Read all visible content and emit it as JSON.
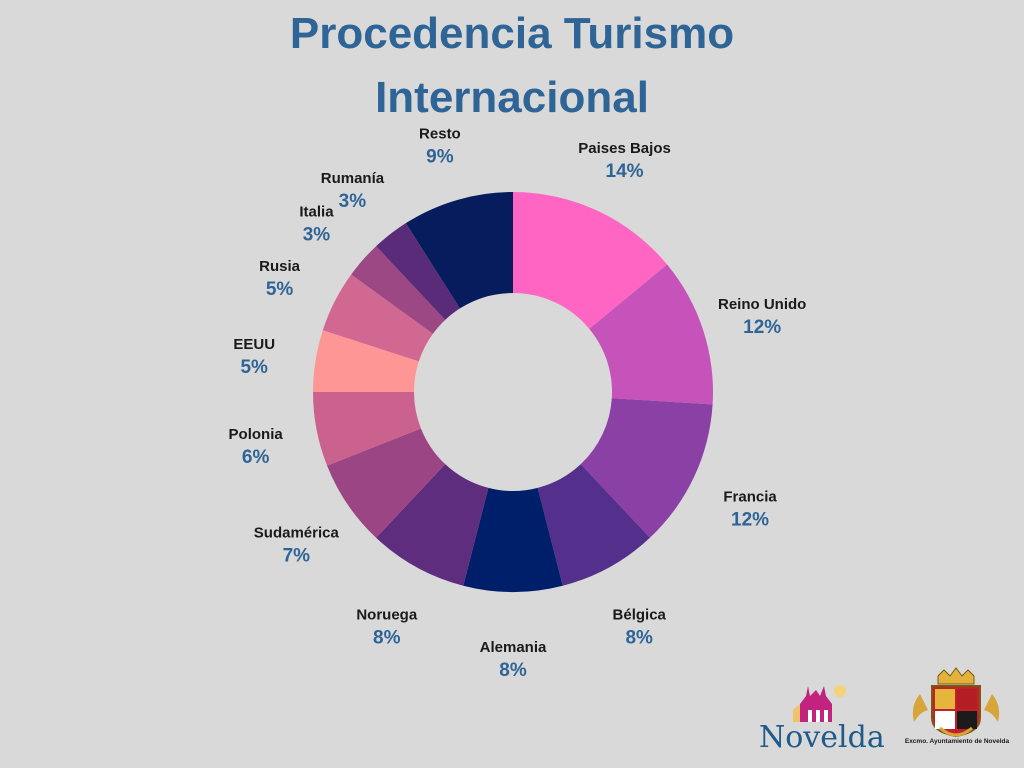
{
  "title_line1": "Procedencia Turismo",
  "title_line2": "Internacional",
  "chart_data": {
    "type": "pie",
    "donut": true,
    "title": "Procedencia Turismo Internacional",
    "categories": [
      "Paises Bajos",
      "Reino Unido",
      "Francia",
      "Bélgica",
      "Alemania",
      "Noruega",
      "Sudamérica",
      "Polonia",
      "EEUU",
      "Rusia",
      "Italia",
      "Rumanía",
      "Resto"
    ],
    "values": [
      14,
      12,
      12,
      8,
      8,
      8,
      7,
      6,
      5,
      5,
      3,
      3,
      9
    ],
    "labels": [
      "14%",
      "12%",
      "12%",
      "8%",
      "8%",
      "8%",
      "7%",
      "6%",
      "5%",
      "5%",
      "3%",
      "3%",
      "9%"
    ],
    "colors": [
      "#ff66c4",
      "#c653b9",
      "#8a40a4",
      "#54308c",
      "#001f6b",
      "#5e2d7e",
      "#9c4585",
      "#cb628e",
      "#ff9696",
      "#d16891",
      "#9b4885",
      "#5a2b78",
      "#061c5c"
    ]
  },
  "logos": {
    "novelda_text": "Novelda",
    "crest_caption": "Excmo. Ayuntamiento de Novelda"
  }
}
